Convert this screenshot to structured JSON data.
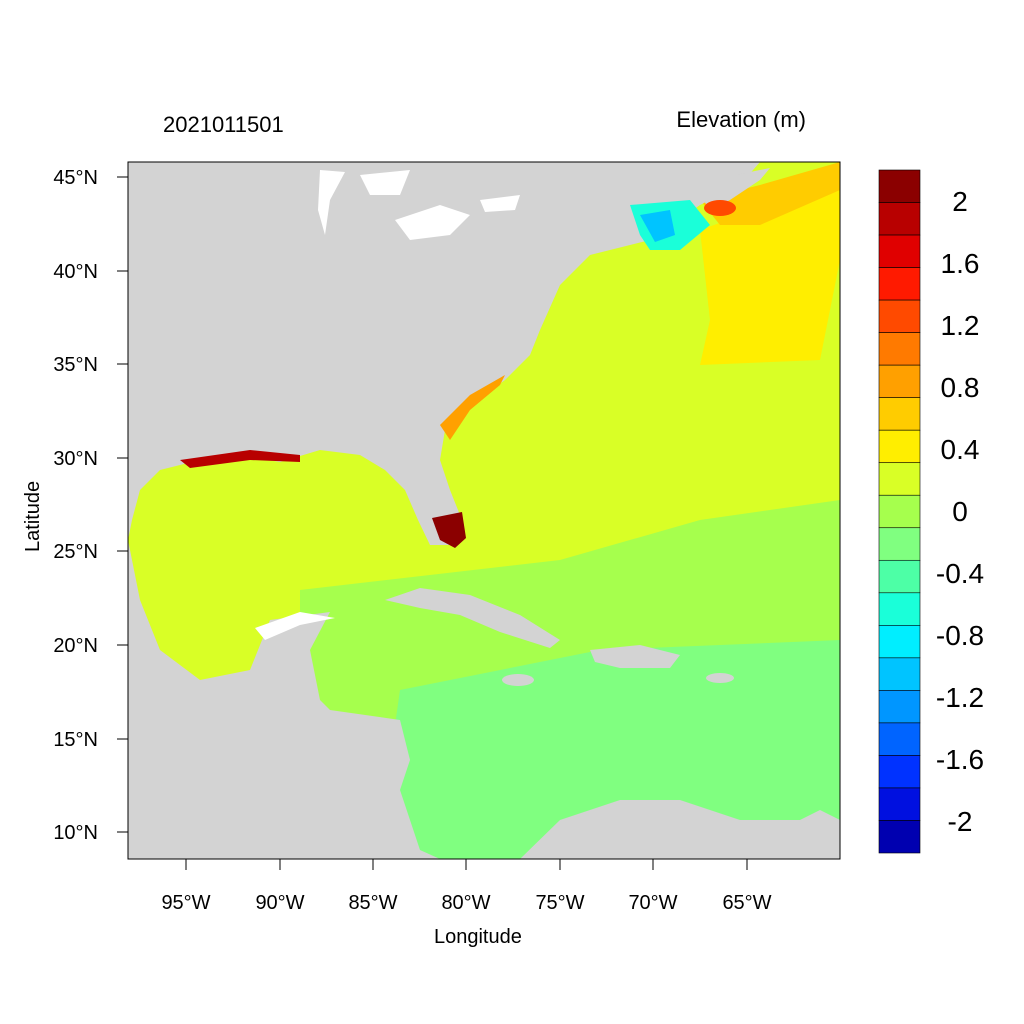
{
  "title_left": "2021011501",
  "title_right": "Elevation (m)",
  "xlabel": "Longitude",
  "ylabel": "Latitude",
  "x_ticks": [
    {
      "label": "95°W",
      "lon": -95
    },
    {
      "label": "90°W",
      "lon": -90
    },
    {
      "label": "85°W",
      "lon": -85
    },
    {
      "label": "80°W",
      "lon": -80
    },
    {
      "label": "75°W",
      "lon": -75
    },
    {
      "label": "70°W",
      "lon": -70
    },
    {
      "label": "65°W",
      "lon": -65
    }
  ],
  "y_ticks": [
    {
      "label": "45°N",
      "lat": 45
    },
    {
      "label": "40°N",
      "lat": 40
    },
    {
      "label": "35°N",
      "lat": 35
    },
    {
      "label": "30°N",
      "lat": 30
    },
    {
      "label": "25°N",
      "lat": 25
    },
    {
      "label": "20°N",
      "lat": 20
    },
    {
      "label": "15°N",
      "lat": 15
    },
    {
      "label": "10°N",
      "lat": 10
    }
  ],
  "colorbar": {
    "colors_top_to_bottom": [
      "#8b0000",
      "#b80000",
      "#e00000",
      "#ff1a00",
      "#ff4a00",
      "#ff7a00",
      "#ffa000",
      "#ffcc00",
      "#ffee00",
      "#d9ff26",
      "#a6ff4d",
      "#80ff80",
      "#4dffa6",
      "#1affd9",
      "#00eeff",
      "#00c4ff",
      "#0096ff",
      "#0064ff",
      "#0032ff",
      "#0010e0",
      "#0000b0"
    ],
    "labels_top_to_bottom": [
      "2",
      "1.6",
      "1.2",
      "0.8",
      "0.4",
      "0",
      "-0.4",
      "-0.8",
      "-1.2",
      "-1.6",
      "-2"
    ]
  },
  "chart_data": {
    "type": "heatmap",
    "variable": "Elevation (m)",
    "timestamp": "2021011501",
    "lon_range": [
      -98,
      -60
    ],
    "lat_range": [
      8.5,
      46
    ],
    "value_range": [
      -2,
      2
    ],
    "regions": [
      {
        "region": "Gulf of Mexico",
        "value": 0.3
      },
      {
        "region": "Western Atlantic",
        "value": 0.3
      },
      {
        "region": "NW Atlantic offshore",
        "value": 0.5
      },
      {
        "region": "Caribbean Sea",
        "value": 0.05
      },
      {
        "region": "South Florida coast",
        "value": 2.2
      },
      {
        "region": "Gulf of Maine",
        "value": -0.5
      },
      {
        "region": "Bay of Fundy / Nova Scotia",
        "value": 1.0
      },
      {
        "region": "Georgia–South Carolina coast",
        "value": 0.8
      }
    ]
  }
}
